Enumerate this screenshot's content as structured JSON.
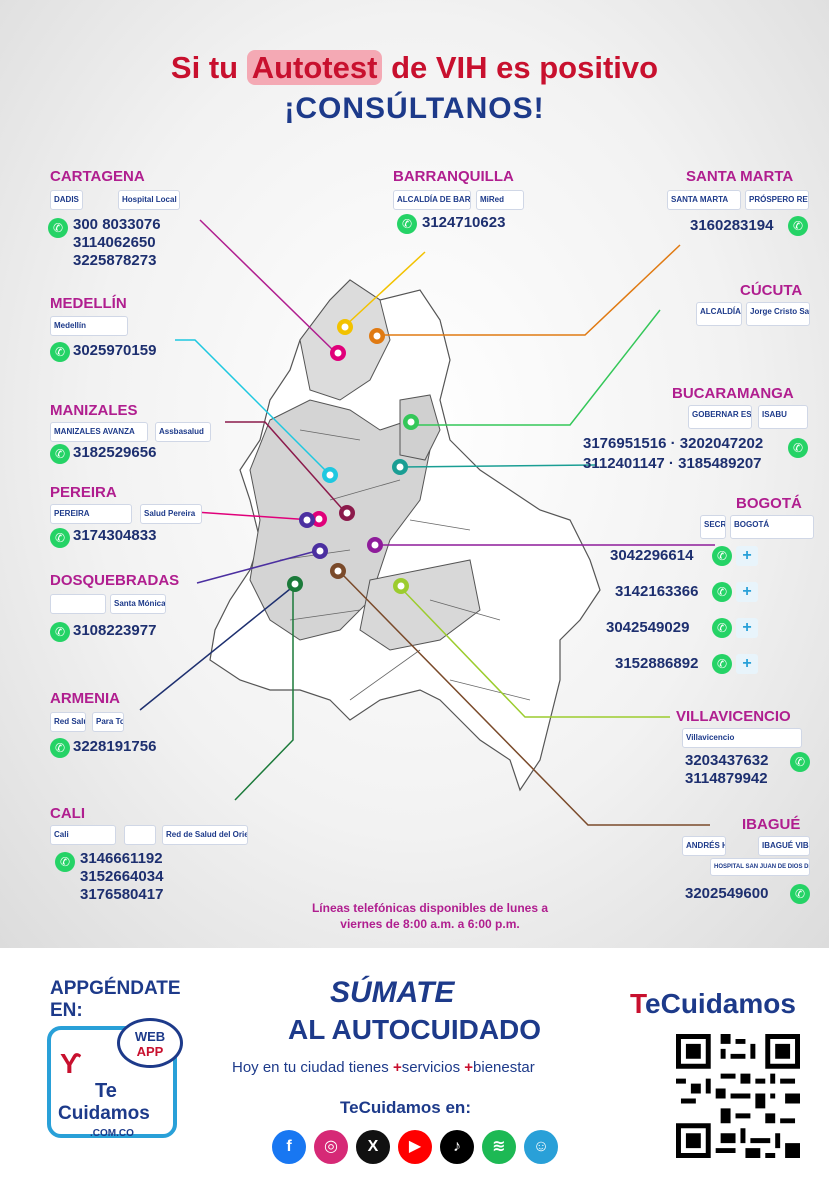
{
  "header": {
    "title_prefix": "Si tu",
    "title_highlight": "Autotest",
    "title_suffix": "de VIH es positivo",
    "subtitle": "¡CONSÚLTANOS!"
  },
  "cities": {
    "cartagena": {
      "name": "CARTAGENA",
      "logos": [
        "DADIS",
        "Hospital Local Cartagena"
      ],
      "phones": [
        "300 8033076",
        "3114062650",
        "3225878273"
      ]
    },
    "barranquilla": {
      "name": "BARRANQUILLA",
      "logos": [
        "ALCALDÍA DE BARRANQUILLA",
        "MiRed"
      ],
      "phones": [
        "3124710623"
      ]
    },
    "santa_marta": {
      "name": "SANTA MARTA",
      "logos": [
        "SANTA MARTA",
        "PRÓSPERO REVERENDO"
      ],
      "phones": [
        "3160283194"
      ]
    },
    "medellin": {
      "name": "MEDELLÍN",
      "logos": [
        "Medellín"
      ],
      "phones": [
        "3025970159"
      ]
    },
    "cucuta": {
      "name": "CÚCUTA",
      "logos": [
        "ALCALDÍA DE SAN JOSÉ DE CÚCUTA",
        "Jorge Cristo Sahium"
      ],
      "phones": []
    },
    "manizales": {
      "name": "MANIZALES",
      "logos": [
        "MANIZALES AVANZA",
        "Assbasalud"
      ],
      "phones": [
        "3182529656"
      ]
    },
    "bucaramanga": {
      "name": "BUCARAMANGA",
      "logos": [
        "GOBERNAR ES HACER",
        "ISABU"
      ],
      "phones": [
        "3176951516 · 3202047202",
        "3112401147 · 3185489207"
      ]
    },
    "pereira": {
      "name": "PEREIRA",
      "logos": [
        "PEREIRA",
        "Salud Pereira"
      ],
      "phones": [
        "3174304833"
      ]
    },
    "bogota": {
      "name": "BOGOTÁ",
      "logos": [
        "SECRETARÍA DE SALUD",
        "BOGOTÁ"
      ],
      "phones": [
        "3042296614",
        "3142163366",
        "3042549029",
        "3152886892"
      ]
    },
    "dosquebradas": {
      "name": "DOSQUEBRADAS",
      "logos": [
        "Santa Mónica"
      ],
      "phones": [
        "3108223977"
      ]
    },
    "armenia": {
      "name": "ARMENIA",
      "logos": [
        "Red Salud Armenia",
        "Para Todos"
      ],
      "phones": [
        "3228191756"
      ]
    },
    "villavicencio": {
      "name": "VILLAVICENCIO",
      "logos": [
        "Villavicencio"
      ],
      "phones": [
        "3203437632",
        "3114879942"
      ]
    },
    "cali": {
      "name": "CALI",
      "logos": [
        "Cali",
        "Red de Salud del Oriente"
      ],
      "phones": [
        "3146661192",
        "3152664034",
        "3176580417"
      ]
    },
    "ibague": {
      "name": "IBAGUÉ",
      "logos": [
        "ANDRÉS HURTADO",
        "IBAGUÉ VIBRA",
        "HOSPITAL SAN JUAN DE DIOS DE HONDA E.S.E - NIVEL II"
      ],
      "phones": [
        "3202549600"
      ]
    }
  },
  "schedule": {
    "line1": "Líneas telefónicas disponibles de lunes a",
    "line2": "viernes de 8:00 a.m. a 6:00 p.m."
  },
  "footer": {
    "app_title_1": "APPGÉNDATE",
    "app_title_2": "EN:",
    "webapp_1": "WEB",
    "webapp_2": "APP",
    "app_te": "Te",
    "app_name": "Cuidamos",
    "app_domain": ".COM.CO",
    "sumate": "SÚMATE",
    "autocuidado": "AL AUTOCUIDADO",
    "tagline_1": "Hoy en tu ciudad tienes",
    "tagline_2": "servicios",
    "tagline_3": "bienestar",
    "follow": "TeCuidamos en:",
    "brand_t": "T",
    "brand_rest": "eCuidamos",
    "social_icons": [
      "facebook-icon",
      "instagram-icon",
      "x-icon",
      "youtube-icon",
      "tiktok-icon",
      "spotify-icon",
      "app-icon"
    ]
  },
  "colors": {
    "magenta": "#b01e8f",
    "navy": "#1d2f6f",
    "red": "#c8102e",
    "whatsapp": "#25d366"
  }
}
